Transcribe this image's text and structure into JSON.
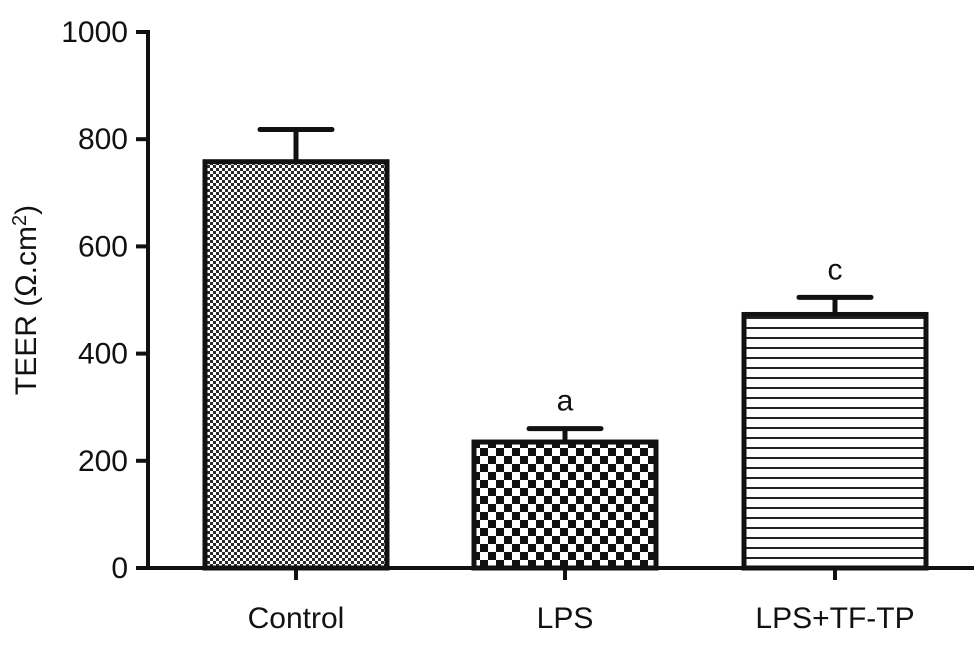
{
  "chart_data": {
    "type": "bar",
    "categories": [
      "Control",
      "LPS",
      "LPS+TF-TP"
    ],
    "values": [
      758,
      235,
      473
    ],
    "error_upper": [
      818,
      260,
      505
    ],
    "annotations": [
      "",
      "a",
      "c"
    ],
    "patterns": [
      "fine-dots",
      "checker",
      "horizontal-lines"
    ],
    "ylabel_main": "TEER (Ω.cm",
    "ylabel_sup": "2",
    "ylabel_end": ")",
    "ylim": [
      0,
      1000
    ],
    "yticks": [
      0,
      200,
      400,
      600,
      800,
      1000
    ],
    "grid": false,
    "legend": "none",
    "colors": {
      "axis": "#111111",
      "bar_stroke": "#111111",
      "pattern_dark": "#1a1a1a",
      "pattern_light": "#ffffff"
    }
  }
}
